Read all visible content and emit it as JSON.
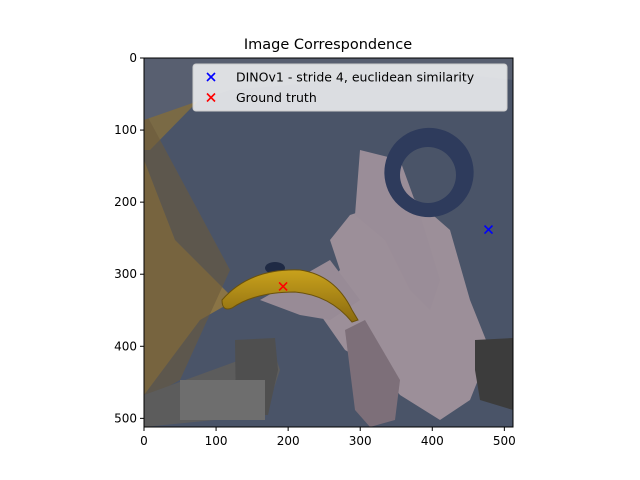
{
  "chart_data": {
    "type": "scatter",
    "title": "Image Correspondence",
    "xlabel": "",
    "ylabel": "",
    "xlim": [
      0,
      512
    ],
    "ylim": [
      512,
      0
    ],
    "x_ticks": [
      0,
      100,
      200,
      300,
      400,
      500
    ],
    "y_ticks": [
      0,
      100,
      200,
      300,
      400,
      500
    ],
    "background": "image",
    "grid": false,
    "legend_position": "upper-right",
    "series": [
      {
        "name": "DINOv1 - stride 4, euclidean similarity",
        "marker": "x",
        "color": "#0000ff",
        "points": [
          {
            "x": 478,
            "y": 238
          }
        ]
      },
      {
        "name": "Ground truth",
        "marker": "x",
        "color": "#ff0000",
        "points": [
          {
            "x": 193,
            "y": 317
          }
        ]
      }
    ]
  }
}
